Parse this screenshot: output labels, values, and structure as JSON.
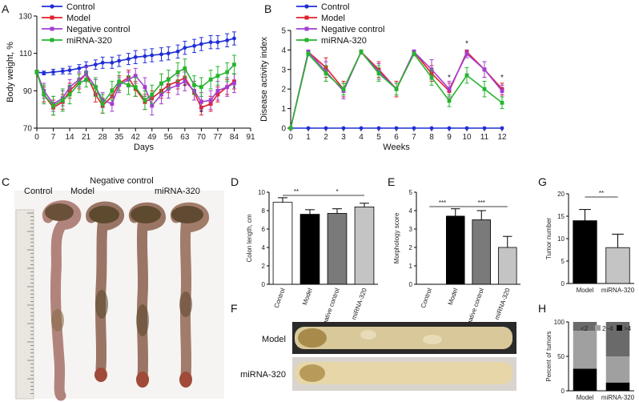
{
  "panels": {
    "A": "A",
    "B": "B",
    "C": "C",
    "D": "D",
    "E": "E",
    "F": "F",
    "G": "G",
    "H": "H"
  },
  "colors": {
    "control": "#1f2fd6",
    "model": "#e0202a",
    "negative": "#a23fd0",
    "mirna": "#25b52e"
  },
  "chart_data": [
    {
      "id": "A",
      "type": "line",
      "ylabel": "Body weight, %",
      "xlabel": "Days",
      "xlim": [
        0,
        91
      ],
      "ylim": [
        70,
        130
      ],
      "xticks": [
        0,
        7,
        14,
        21,
        28,
        35,
        42,
        49,
        56,
        63,
        70,
        77,
        84,
        91
      ],
      "yticks": [
        70,
        90,
        110,
        130
      ],
      "x": [
        0,
        3,
        7,
        11,
        14,
        18,
        21,
        25,
        28,
        32,
        35,
        39,
        42,
        46,
        49,
        53,
        56,
        60,
        63,
        67,
        70,
        74,
        77,
        81,
        84
      ],
      "series": [
        {
          "name": "Control",
          "color": "#1f2fd6",
          "values": [
            100,
            99.5,
            100,
            100.5,
            101,
            102,
            103,
            104,
            105,
            105,
            106,
            107,
            108,
            108.5,
            109,
            109.5,
            110,
            111,
            113,
            114,
            115,
            116,
            116,
            117,
            118
          ],
          "errors": [
            1,
            1,
            1.5,
            1.5,
            2,
            2,
            2.5,
            2.5,
            3,
            3,
            3,
            3,
            3.5,
            3.5,
            3.5,
            3.5,
            3.5,
            3.5,
            3.5,
            3.5,
            3.5,
            3.5,
            3.5,
            3.5,
            3.5
          ]
        },
        {
          "name": "Model",
          "color": "#e0202a",
          "values": [
            100,
            88,
            81,
            84,
            90,
            95,
            99,
            88,
            82,
            87,
            94,
            97,
            91,
            84,
            86,
            90,
            93,
            95,
            97,
            89,
            81,
            83,
            88,
            92,
            95
          ],
          "errors": [
            1,
            4,
            4,
            4,
            4,
            4,
            4,
            4,
            4,
            4,
            4,
            4,
            4,
            4,
            4,
            4,
            4,
            4,
            4,
            4,
            4,
            4,
            4,
            4,
            4
          ]
        },
        {
          "name": "Negative control",
          "color": "#a23fd0",
          "values": [
            100,
            90,
            83,
            86,
            92,
            96,
            99,
            92,
            85,
            83,
            93,
            96,
            98,
            92,
            82,
            88,
            91,
            93,
            95,
            90,
            84,
            85,
            90,
            92,
            94
          ],
          "errors": [
            1,
            4,
            4,
            4,
            4,
            4,
            4,
            4,
            4,
            4,
            4,
            4,
            4,
            5,
            5,
            5,
            5,
            5,
            5,
            5,
            5,
            5,
            5,
            5,
            5
          ]
        },
        {
          "name": "miRNA-320",
          "color": "#25b52e",
          "values": [
            100,
            88,
            82,
            85,
            88,
            94,
            96,
            92,
            83,
            90,
            95,
            93,
            92,
            85,
            88,
            94,
            96,
            100,
            102,
            93,
            92,
            96,
            98,
            100,
            104
          ],
          "errors": [
            1,
            5,
            5,
            6,
            5,
            5,
            4,
            5,
            5,
            5,
            5,
            5,
            5,
            5,
            5,
            5,
            5,
            5,
            5,
            5,
            5,
            5,
            5,
            5,
            5
          ]
        }
      ],
      "annotations": [
        {
          "x": 63,
          "y": 91,
          "text": "*"
        },
        {
          "x": 70,
          "y": 77,
          "text": "*"
        },
        {
          "x": 84,
          "y": 90,
          "text": "*"
        }
      ]
    },
    {
      "id": "B",
      "type": "line",
      "ylabel": "Disease activity index",
      "xlabel": "Weeks",
      "xlim": [
        0,
        12
      ],
      "ylim": [
        0,
        5
      ],
      "xticks": [
        0,
        1,
        2,
        3,
        4,
        5,
        6,
        7,
        8,
        9,
        10,
        11,
        12
      ],
      "yticks": [
        0,
        1,
        2,
        3,
        4,
        5
      ],
      "x": [
        0,
        1,
        2,
        3,
        4,
        5,
        6,
        7,
        8,
        9,
        10,
        11,
        12
      ],
      "series": [
        {
          "name": "Control",
          "color": "#1f2fd6",
          "values": [
            0,
            0,
            0,
            0,
            0,
            0,
            0,
            0,
            0,
            0,
            0,
            0,
            0
          ],
          "errors": [
            0,
            0,
            0,
            0,
            0,
            0,
            0,
            0,
            0,
            0,
            0,
            0,
            0
          ]
        },
        {
          "name": "Model",
          "color": "#e0202a",
          "values": [
            0,
            3.9,
            3.1,
            2.0,
            3.9,
            3.0,
            2.0,
            3.9,
            2.8,
            1.9,
            3.9,
            3.0,
            2.0
          ],
          "errors": [
            0,
            0.1,
            0.5,
            0.4,
            0.1,
            0.4,
            0.4,
            0.1,
            0.4,
            0.4,
            0.1,
            0.4,
            0.3
          ]
        },
        {
          "name": "Negative control",
          "color": "#a23fd0",
          "values": [
            0,
            3.9,
            2.9,
            1.9,
            3.9,
            2.9,
            2.0,
            3.9,
            3.0,
            2.0,
            3.8,
            3.0,
            1.9
          ],
          "errors": [
            0,
            0.1,
            0.5,
            0.4,
            0.1,
            0.4,
            0.3,
            0.1,
            0.5,
            0.4,
            0.2,
            0.4,
            0.3
          ]
        },
        {
          "name": "miRNA-320",
          "color": "#25b52e",
          "values": [
            0,
            3.8,
            2.8,
            2.0,
            3.9,
            2.8,
            2.0,
            3.8,
            2.6,
            1.4,
            2.7,
            2.0,
            1.3
          ],
          "errors": [
            0,
            0.1,
            0.4,
            0.3,
            0.1,
            0.4,
            0.3,
            0.1,
            0.4,
            0.3,
            0.4,
            0.4,
            0.3
          ]
        }
      ],
      "annotations": [
        {
          "x": 9,
          "y": 2.45,
          "text": "*"
        },
        {
          "x": 10,
          "y": 4.2,
          "text": "*"
        },
        {
          "x": 12,
          "y": 2.45,
          "text": "*"
        }
      ]
    },
    {
      "id": "D",
      "type": "bar",
      "ylabel": "Colon length, cm",
      "ylim": [
        0,
        10
      ],
      "yticks": [
        0,
        2,
        4,
        6,
        8,
        10
      ],
      "categories": [
        "Control",
        "Model",
        "Negative control",
        "miRNA-320"
      ],
      "values": [
        8.9,
        7.6,
        7.7,
        8.4
      ],
      "errors": [
        0.5,
        0.5,
        0.5,
        0.4
      ],
      "fills": [
        "#ffffff",
        "#000000",
        "#7a7a7a",
        "#c4c4c4"
      ],
      "significance": [
        {
          "from": 0,
          "to": 1,
          "text": "**"
        },
        {
          "from": 1,
          "to": 3,
          "text": "*"
        }
      ]
    },
    {
      "id": "E",
      "type": "bar",
      "ylabel": "Morphology score",
      "ylim": [
        0,
        5
      ],
      "yticks": [
        0,
        1,
        2,
        3,
        4,
        5
      ],
      "categories": [
        "Control",
        "Model",
        "Negative control",
        "miRNA-320"
      ],
      "values": [
        0,
        3.7,
        3.5,
        2.0
      ],
      "errors": [
        0,
        0.4,
        0.5,
        0.6
      ],
      "fills": [
        "#ffffff",
        "#000000",
        "#7a7a7a",
        "#c4c4c4"
      ],
      "significance": [
        {
          "from": 0,
          "to": 1,
          "text": "***"
        },
        {
          "from": 1,
          "to": 3,
          "text": "***"
        }
      ]
    },
    {
      "id": "G",
      "type": "bar",
      "ylabel": "Tumor number",
      "ylim": [
        0,
        20
      ],
      "yticks": [
        0,
        5,
        10,
        15,
        20
      ],
      "categories": [
        "Model",
        "miRNA-320"
      ],
      "values": [
        14,
        8
      ],
      "errors": [
        2.5,
        3
      ],
      "fills": [
        "#000000",
        "#c4c4c4"
      ],
      "significance": [
        {
          "from": 0,
          "to": 1,
          "text": "**"
        }
      ]
    },
    {
      "id": "H",
      "type": "bar",
      "ylabel": "Percent of tumors",
      "ylim": [
        0,
        100
      ],
      "yticks": [
        0,
        50,
        100
      ],
      "categories": [
        "Model",
        "miRNA-320"
      ],
      "series": [
        {
          "name": ">4",
          "color": "#000000",
          "values": [
            32,
            12
          ]
        },
        {
          "name": "2~4",
          "color": "#a0a0a0",
          "values": [
            55,
            38
          ]
        },
        {
          "name": "<2",
          "color": "#6a6a6a",
          "values": [
            13,
            50
          ]
        }
      ]
    }
  ],
  "photos": {
    "C": {
      "labels": [
        "Control",
        "Model",
        "Negative control",
        "miRNA-320"
      ]
    },
    "F": {
      "labels": [
        "Model",
        "miRNA-320"
      ]
    }
  }
}
